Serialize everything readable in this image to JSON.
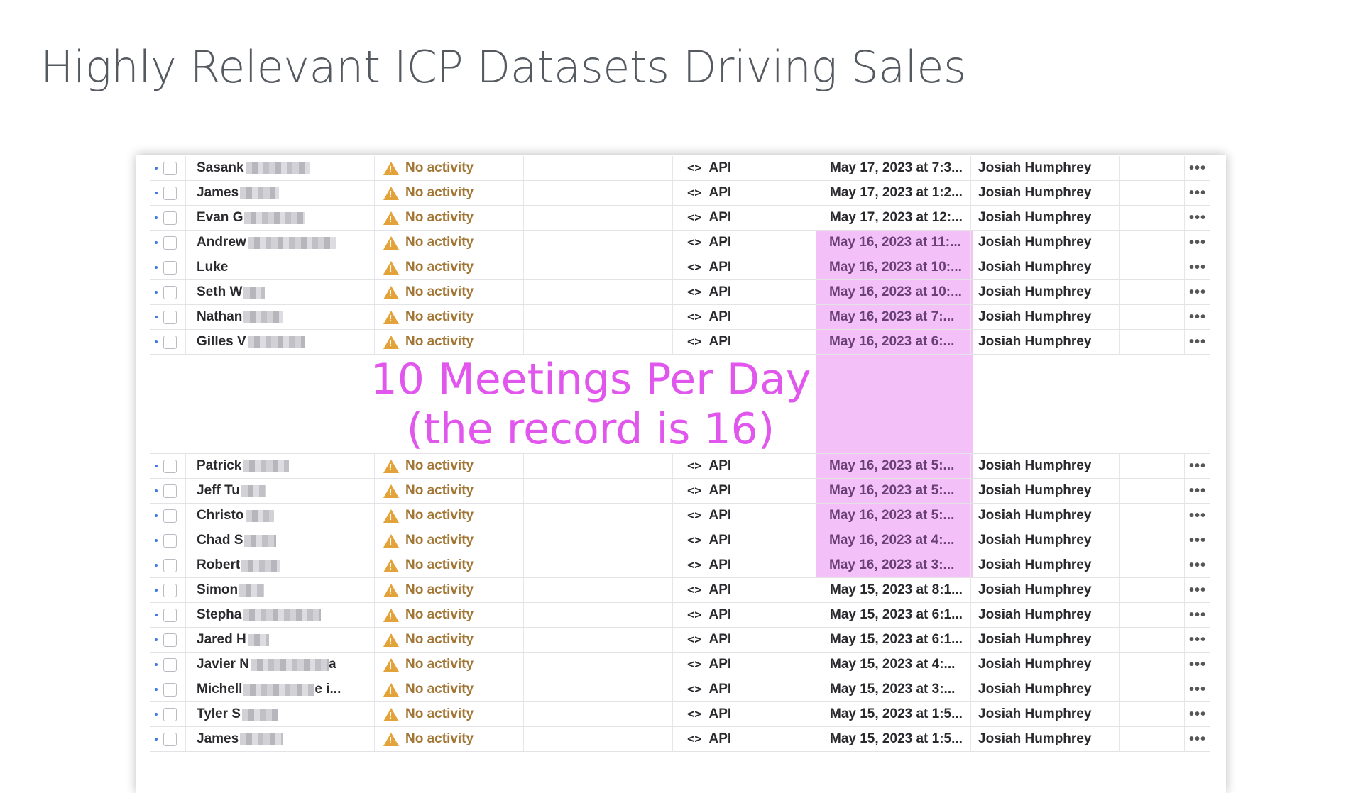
{
  "slide": {
    "title": "Highly Relevant ICP Datasets Driving Sales"
  },
  "overlay": {
    "line1": "10 Meetings Per Day",
    "line2": "(the record is 16)",
    "color": "#e156ec",
    "highlight_color": "#f3c1f7"
  },
  "table": {
    "status_label": "No activity",
    "source_label": "API",
    "owner": "Josiah Humphrey",
    "more_label": "•••",
    "rows": [
      {
        "name": "Sasank",
        "suffix": "",
        "date": "May 17, 2023 at 7:3...",
        "highlighted": false
      },
      {
        "name": "James",
        "suffix": "",
        "date": "May 17, 2023 at 1:2...",
        "highlighted": false
      },
      {
        "name": "Evan G",
        "suffix": "",
        "date": "May 17, 2023 at 12:...",
        "highlighted": false
      },
      {
        "name": "Andrew",
        "suffix": "",
        "date": "May 16, 2023 at 11:...",
        "highlighted": true
      },
      {
        "name": "Luke",
        "suffix": "",
        "date": "May 16, 2023 at 10:...",
        "highlighted": true
      },
      {
        "name": "Seth W",
        "suffix": "",
        "date": "May 16, 2023 at 10:...",
        "highlighted": true
      },
      {
        "name": "Nathan",
        "suffix": "",
        "date": "May 16, 2023 at 7:...",
        "highlighted": true
      },
      {
        "name": "Gilles V",
        "suffix": "",
        "date": "May 16, 2023 at 6:...",
        "highlighted": true
      },
      {
        "name": "Patrick",
        "suffix": "",
        "date": "May 16, 2023 at 5:...",
        "highlighted": true
      },
      {
        "name": "Jeff Tu",
        "suffix": "",
        "date": "May 16, 2023 at 5:...",
        "highlighted": true
      },
      {
        "name": "Christo",
        "suffix": "",
        "date": "May 16, 2023 at 5:...",
        "highlighted": true
      },
      {
        "name": "Chad S",
        "suffix": "",
        "date": "May 16, 2023 at 4:...",
        "highlighted": true
      },
      {
        "name": "Robert",
        "suffix": "",
        "date": "May 16, 2023 at 3:...",
        "highlighted": true
      },
      {
        "name": "Simon",
        "suffix": "",
        "date": "May 15, 2023 at 8:1...",
        "highlighted": false
      },
      {
        "name": "Stepha",
        "suffix": "",
        "date": "May 15, 2023 at 6:1...",
        "highlighted": false
      },
      {
        "name": "Jared H",
        "suffix": "",
        "date": "May 15, 2023 at 6:1...",
        "highlighted": false
      },
      {
        "name": "Javier N",
        "suffix": "a",
        "date": "May 15, 2023 at 4:...",
        "highlighted": false
      },
      {
        "name": "Michell",
        "suffix": "e i...",
        "date": "May 15, 2023 at 3:...",
        "highlighted": false
      },
      {
        "name": "Tyler S",
        "suffix": "",
        "date": "May 15, 2023 at 1:5...",
        "highlighted": false
      },
      {
        "name": "James",
        "suffix": "",
        "date": "May 15, 2023 at 1:5...",
        "highlighted": false
      }
    ]
  }
}
